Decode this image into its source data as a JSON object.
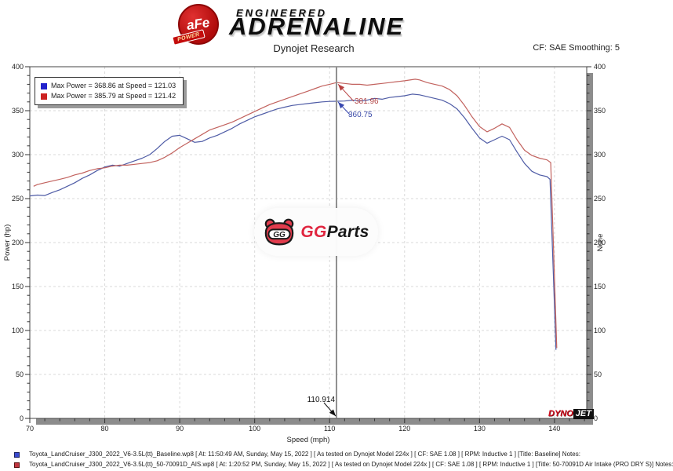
{
  "header": {
    "afe": "aFe",
    "power": "POWER",
    "engineered": "ENGINEERED",
    "adrenaline": "ADRENALINE",
    "title": "Dynojet Research",
    "smoothing": "CF: SAE Smoothing: 5"
  },
  "chart_data": {
    "type": "line",
    "xlabel": "Speed (mph)",
    "ylabel_left": "Power (hp)",
    "ylabel_right": "None",
    "xlim": [
      70,
      144.3
    ],
    "ylim": [
      0,
      400
    ],
    "x_ticks": [
      70,
      80,
      90,
      100,
      110,
      120,
      130,
      140
    ],
    "y_ticks": [
      0,
      50,
      100,
      150,
      200,
      250,
      300,
      350,
      400
    ],
    "x_minor_step": 2,
    "y_minor_step": 10,
    "grid": "dashed",
    "grid_color": "#d9d9d9",
    "cursor": {
      "speed": 110.914,
      "label": "110.914",
      "red_value": "381.96",
      "blue_value": "360.75"
    },
    "series": [
      {
        "name": "baseline",
        "color": "#4f5ca6",
        "legend_swatch": "#2222cc",
        "legend": "Max Power = 368.86 at Speed = 121.03",
        "max_power": 368.86,
        "max_power_speed": 121.03,
        "points": [
          [
            70,
            253
          ],
          [
            71,
            254
          ],
          [
            72,
            253.5
          ],
          [
            73,
            257
          ],
          [
            74,
            260
          ],
          [
            75,
            264
          ],
          [
            76,
            268
          ],
          [
            77,
            273
          ],
          [
            78,
            277
          ],
          [
            79,
            282
          ],
          [
            80,
            286
          ],
          [
            81,
            288
          ],
          [
            82,
            287
          ],
          [
            83,
            290
          ],
          [
            84,
            293
          ],
          [
            85,
            296
          ],
          [
            86,
            300
          ],
          [
            87,
            307
          ],
          [
            88,
            315
          ],
          [
            89,
            321
          ],
          [
            90,
            322
          ],
          [
            91,
            318
          ],
          [
            92,
            314
          ],
          [
            93,
            315
          ],
          [
            94,
            319
          ],
          [
            95,
            322
          ],
          [
            96,
            326
          ],
          [
            97,
            330
          ],
          [
            98,
            335
          ],
          [
            99,
            339
          ],
          [
            100,
            343
          ],
          [
            101,
            346
          ],
          [
            102,
            349
          ],
          [
            103,
            352
          ],
          [
            104,
            354
          ],
          [
            105,
            356
          ],
          [
            106,
            357
          ],
          [
            107,
            358
          ],
          [
            108,
            359
          ],
          [
            109,
            360
          ],
          [
            110,
            360.5
          ],
          [
            110.914,
            360.75
          ],
          [
            112,
            361
          ],
          [
            113,
            362
          ],
          [
            114,
            361
          ],
          [
            115,
            362
          ],
          [
            116,
            364
          ],
          [
            117,
            363
          ],
          [
            118,
            365
          ],
          [
            119,
            366
          ],
          [
            120,
            367
          ],
          [
            121.03,
            368.86
          ],
          [
            122,
            368
          ],
          [
            123,
            366
          ],
          [
            124,
            364
          ],
          [
            125,
            362
          ],
          [
            126,
            358
          ],
          [
            127,
            352
          ],
          [
            128,
            342
          ],
          [
            129,
            330
          ],
          [
            130,
            319
          ],
          [
            131,
            313
          ],
          [
            132,
            317
          ],
          [
            133,
            321
          ],
          [
            134,
            317
          ],
          [
            135,
            303
          ],
          [
            136,
            290
          ],
          [
            137,
            281
          ],
          [
            138,
            277
          ],
          [
            139,
            275
          ],
          [
            139.4,
            272
          ],
          [
            139.9,
            150
          ],
          [
            140.2,
            78
          ]
        ]
      },
      {
        "name": "intake",
        "color": "#c2625e",
        "legend_swatch": "#cc2222",
        "legend": "Max Power = 385.79 at Speed = 121.42",
        "max_power": 385.79,
        "max_power_speed": 121.42,
        "points": [
          [
            70.5,
            264
          ],
          [
            71,
            266
          ],
          [
            72,
            268
          ],
          [
            73,
            270
          ],
          [
            74,
            272
          ],
          [
            75,
            274
          ],
          [
            76,
            277
          ],
          [
            77,
            279
          ],
          [
            78,
            282
          ],
          [
            79,
            284
          ],
          [
            80,
            285
          ],
          [
            81,
            287
          ],
          [
            82,
            288
          ],
          [
            83,
            288
          ],
          [
            84,
            289
          ],
          [
            85,
            290
          ],
          [
            86,
            291
          ],
          [
            87,
            293
          ],
          [
            88,
            297
          ],
          [
            89,
            302
          ],
          [
            90,
            308
          ],
          [
            91,
            313
          ],
          [
            92,
            318
          ],
          [
            93,
            323
          ],
          [
            94,
            328
          ],
          [
            95,
            331
          ],
          [
            96,
            334
          ],
          [
            97,
            337
          ],
          [
            98,
            341
          ],
          [
            99,
            345
          ],
          [
            100,
            349
          ],
          [
            101,
            353
          ],
          [
            102,
            357
          ],
          [
            103,
            360
          ],
          [
            104,
            363
          ],
          [
            105,
            366
          ],
          [
            106,
            369
          ],
          [
            107,
            372
          ],
          [
            108,
            375
          ],
          [
            109,
            378
          ],
          [
            110,
            380
          ],
          [
            110.914,
            381.96
          ],
          [
            112,
            381
          ],
          [
            113,
            380
          ],
          [
            114,
            380
          ],
          [
            115,
            379
          ],
          [
            116,
            380
          ],
          [
            117,
            381
          ],
          [
            118,
            382
          ],
          [
            119,
            383
          ],
          [
            120,
            384
          ],
          [
            121.42,
            385.79
          ],
          [
            122,
            385
          ],
          [
            123,
            382
          ],
          [
            124,
            380
          ],
          [
            125,
            378
          ],
          [
            126,
            374
          ],
          [
            127,
            367
          ],
          [
            128,
            356
          ],
          [
            129,
            343
          ],
          [
            130,
            332
          ],
          [
            131,
            326
          ],
          [
            132,
            330
          ],
          [
            133,
            335
          ],
          [
            134,
            331
          ],
          [
            135,
            317
          ],
          [
            136,
            305
          ],
          [
            137,
            299
          ],
          [
            138,
            296
          ],
          [
            139,
            294
          ],
          [
            139.5,
            291
          ],
          [
            140,
            160
          ],
          [
            140.3,
            80
          ]
        ]
      }
    ]
  },
  "watermark": {
    "gg": "GG",
    "parts": "Parts"
  },
  "dynojet": {
    "dyno": "DYNO",
    "jet": "JET"
  },
  "footer": {
    "lines": [
      {
        "text": "Toyota_LandCruiser_J300_2022_V6-3.5L(tt)_Baseline.wp8 [ At: 11:50:49 AM, Sunday, May 15, 2022 ] [ As tested on Dynojet Model 224x ] [ CF: SAE 1.08 ] [ RPM: Inductive 1 ] [Title: Baseline]  Notes:"
      },
      {
        "text": "Toyota_LandCruiser_J300_2022_V6-3.5L(tt)_50-70091D_AIS.wp8 [ At: 1:20:52 PM, Sunday, May 15, 2022 ] [ As tested on Dynojet Model 224x ] [ CF: SAE 1.08 ] [ RPM: Inductive 1 ] [Title: 50-70091D Air Intake (PRO DRY S)]  Notes:"
      }
    ]
  }
}
